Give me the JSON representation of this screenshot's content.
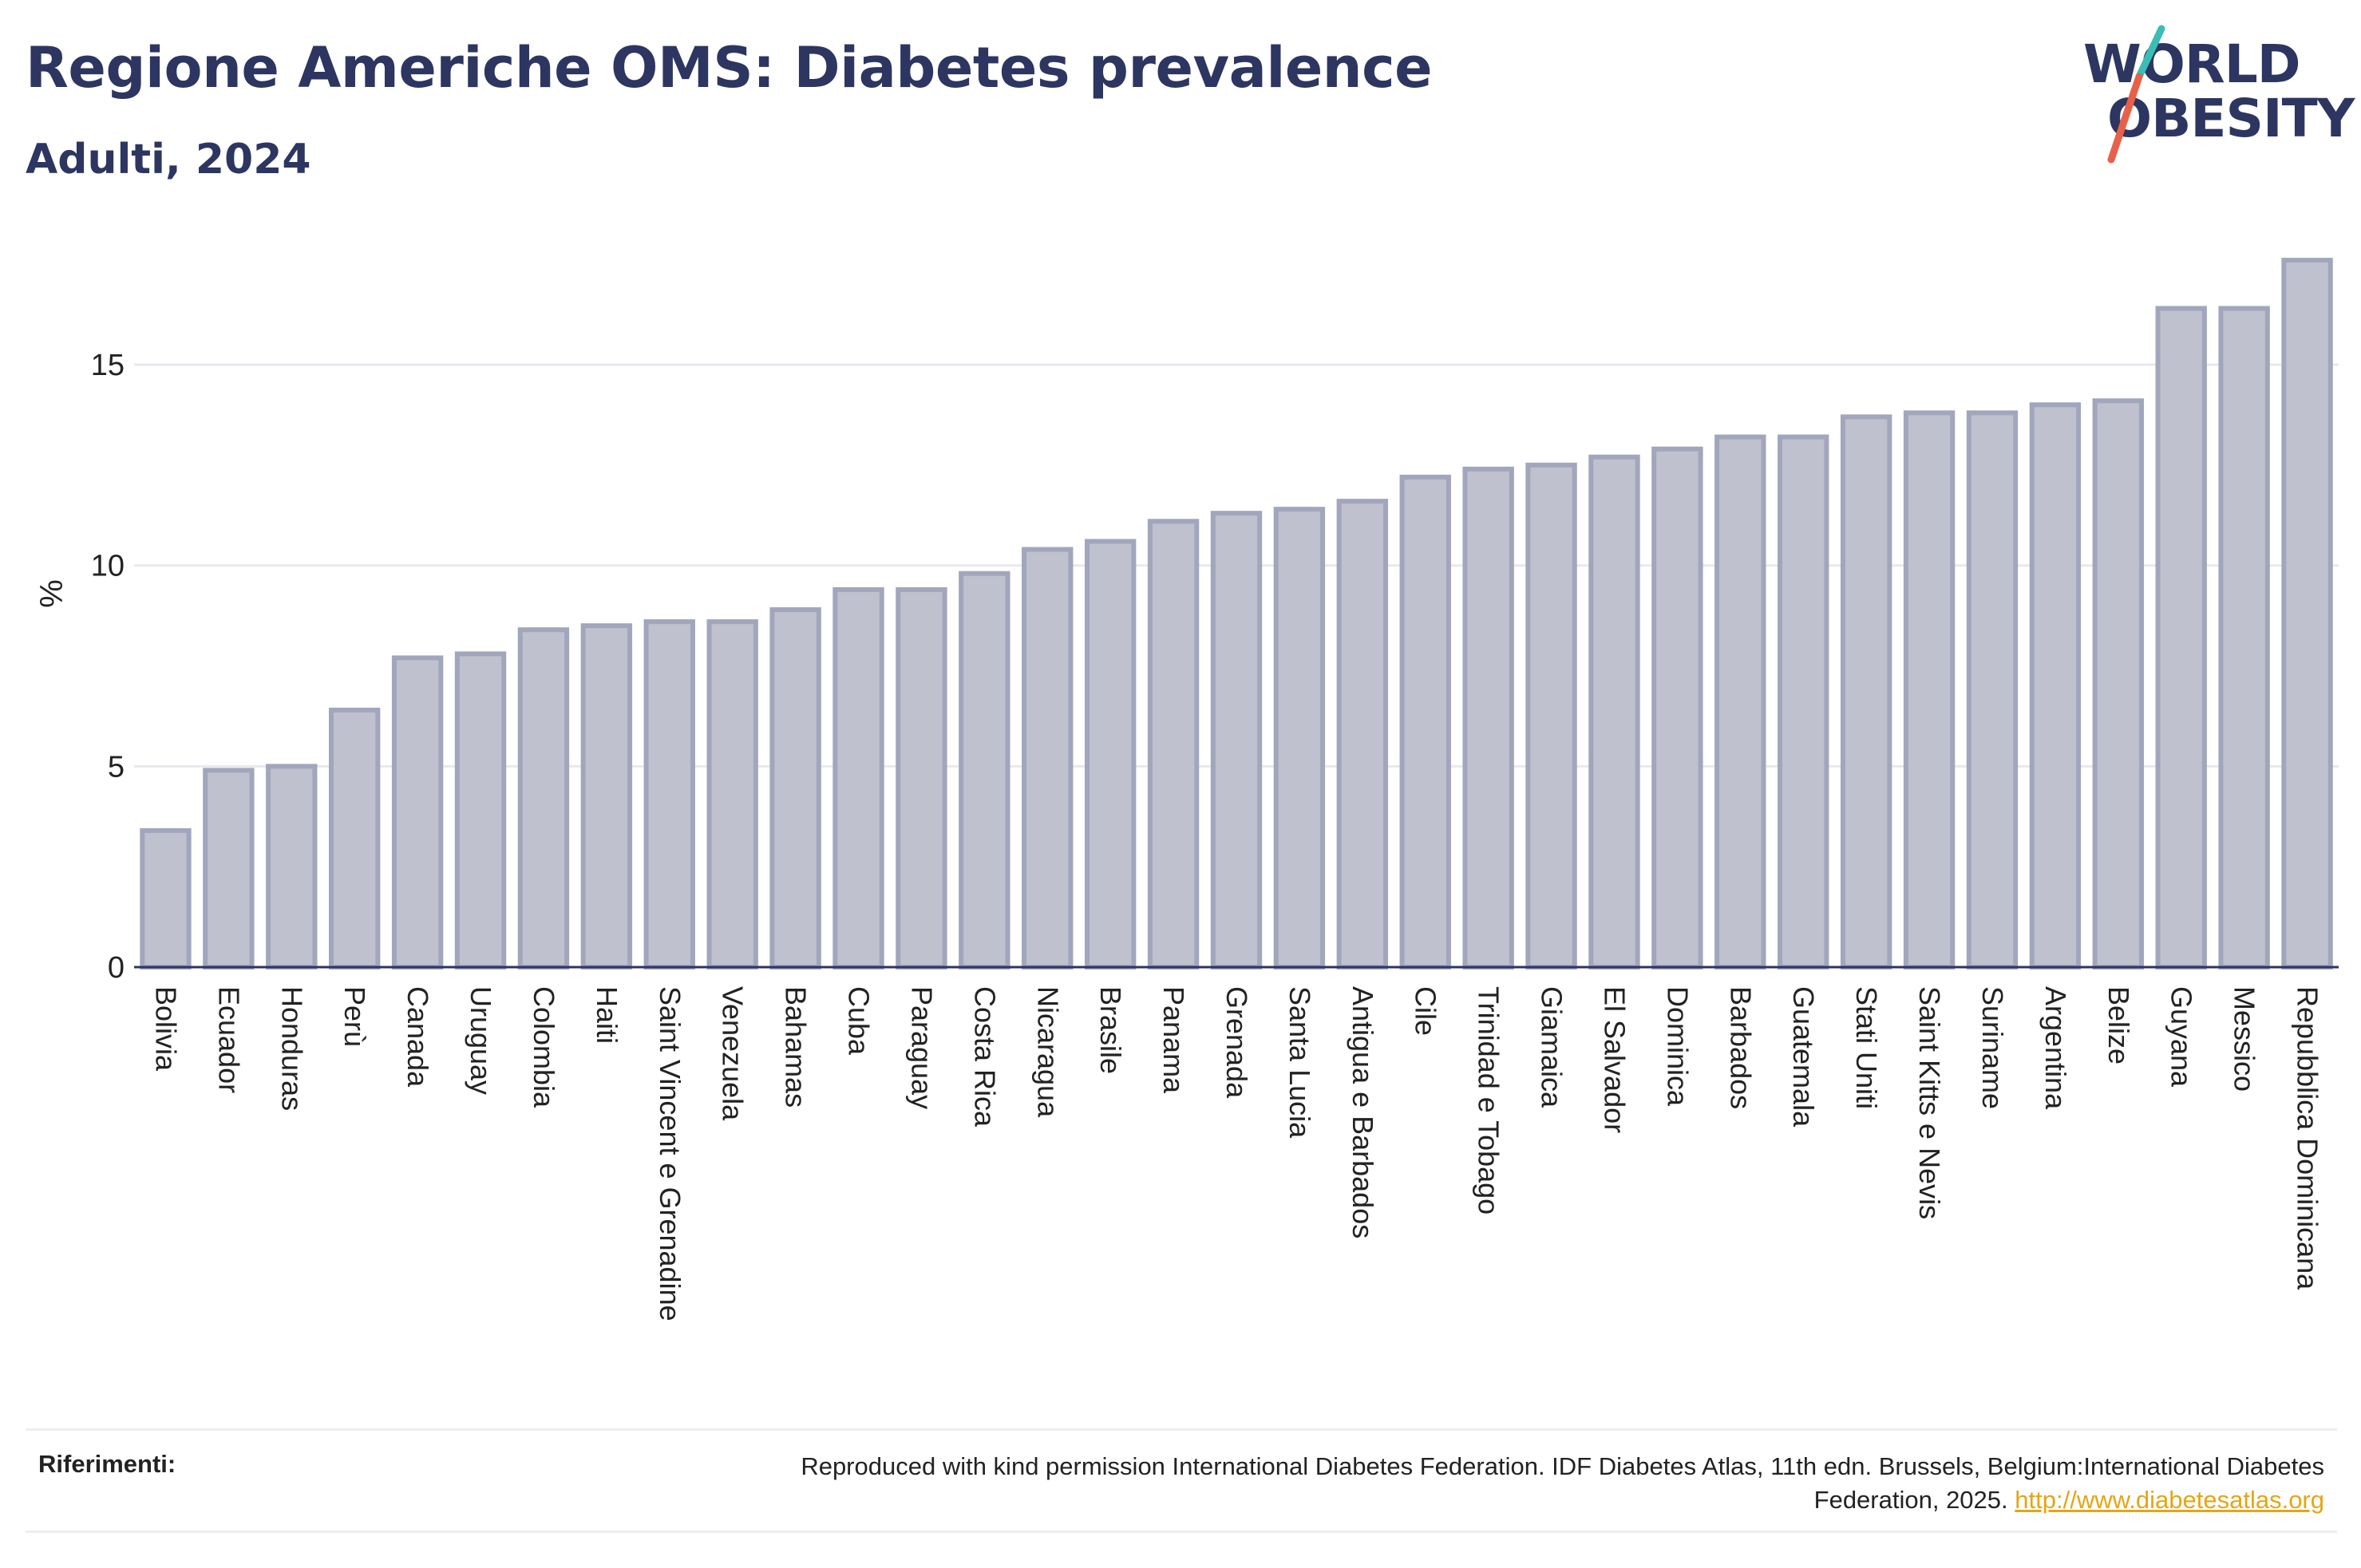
{
  "header": {
    "title": "Regione Americhe OMS: Diabetes prevalence",
    "subtitle": "Adulti, 2024"
  },
  "logo": {
    "line1": "WORLD",
    "line2": "OBESITY",
    "colors": {
      "text": "#2d3561",
      "slash_top": "#3bbdb5",
      "slash_bottom": "#e8604a"
    }
  },
  "chart_data": {
    "type": "bar",
    "ylabel": "%",
    "xlabel": "",
    "ylim": [
      0,
      17.8
    ],
    "yticks": [
      0,
      5,
      10,
      15
    ],
    "grid": true,
    "bar_color": "#bfc1ce",
    "bar_stroke": "#a2a6bc",
    "categories": [
      "Bolivia",
      "Ecuador",
      "Honduras",
      "Perù",
      "Canada",
      "Uruguay",
      "Colombia",
      "Haiti",
      "Saint Vincent e Grenadine",
      "Venezuela",
      "Bahamas",
      "Cuba",
      "Paraguay",
      "Costa Rica",
      "Nicaragua",
      "Brasile",
      "Panama",
      "Grenada",
      "Santa Lucia",
      "Antigua e Barbados",
      "Cile",
      "Trinidad e Tobago",
      "Giamaica",
      "El Salvador",
      "Dominica",
      "Barbados",
      "Guatemala",
      "Stati Uniti",
      "Saint Kitts e Nevis",
      "Suriname",
      "Argentina",
      "Belize",
      "Guyana",
      "Messico",
      "Repubblica Dominicana"
    ],
    "values": [
      3.4,
      4.9,
      5.0,
      6.4,
      7.7,
      7.8,
      8.4,
      8.5,
      8.6,
      8.6,
      8.9,
      9.4,
      9.4,
      9.8,
      10.4,
      10.6,
      11.1,
      11.3,
      11.4,
      11.6,
      12.2,
      12.4,
      12.5,
      12.7,
      12.9,
      13.2,
      13.2,
      13.7,
      13.8,
      13.8,
      14.0,
      14.1,
      16.4,
      16.4,
      17.6
    ]
  },
  "references": {
    "label": "Riferimenti:",
    "text": "Reproduced with kind permission International Diabetes Federation. IDF Diabetes Atlas, 11th edn. Brussels, Belgium:International Diabetes Federation, 2025.",
    "link": "http://www.diabetesatlas.org"
  }
}
